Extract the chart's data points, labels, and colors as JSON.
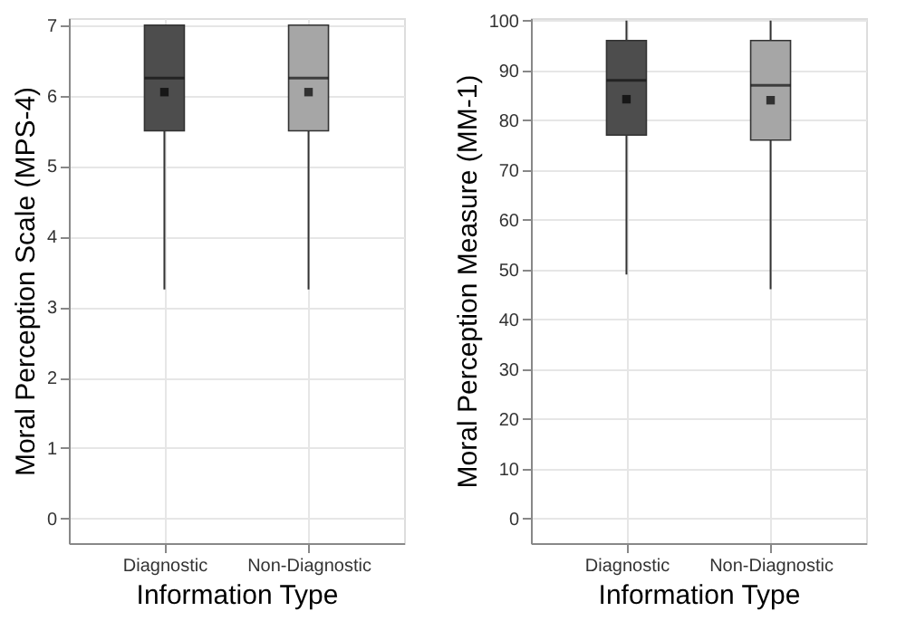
{
  "chart_data": [
    {
      "type": "box",
      "xlabel": "Information Type",
      "ylabel": "Moral Perception Scale (MPS-4)",
      "categories": [
        "Diagnostic",
        "Non-Diagnostic"
      ],
      "colors": [
        "#4d4d4d",
        "#a6a6a6"
      ],
      "ylim": [
        -0.35,
        7.1
      ],
      "yticks": [
        0,
        1,
        2,
        3,
        4,
        5,
        6,
        7
      ],
      "grid": true,
      "marker": "square",
      "boxes": [
        {
          "low": 3.25,
          "q1": 5.5,
          "median": 6.25,
          "q3": 7,
          "high": 7,
          "mean": 6.05
        },
        {
          "low": 3.25,
          "q1": 5.5,
          "median": 6.25,
          "q3": 7,
          "high": 7,
          "mean": 6.05
        }
      ]
    },
    {
      "type": "box",
      "xlabel": "Information Type",
      "ylabel": "Moral Perception Measure (MM-1)",
      "categories": [
        "Diagnostic",
        "Non-Diagnostic"
      ],
      "colors": [
        "#4d4d4d",
        "#a6a6a6"
      ],
      "ylim": [
        -5,
        100.5
      ],
      "yticks": [
        0,
        10,
        20,
        30,
        40,
        50,
        60,
        70,
        80,
        90,
        100
      ],
      "grid": true,
      "marker": "square",
      "boxes": [
        {
          "low": 49,
          "q1": 77,
          "median": 88,
          "q3": 96,
          "high": 100,
          "mean": 84.2
        },
        {
          "low": 46,
          "q1": 76,
          "median": 87,
          "q3": 96,
          "high": 100,
          "mean": 84
        }
      ]
    }
  ]
}
